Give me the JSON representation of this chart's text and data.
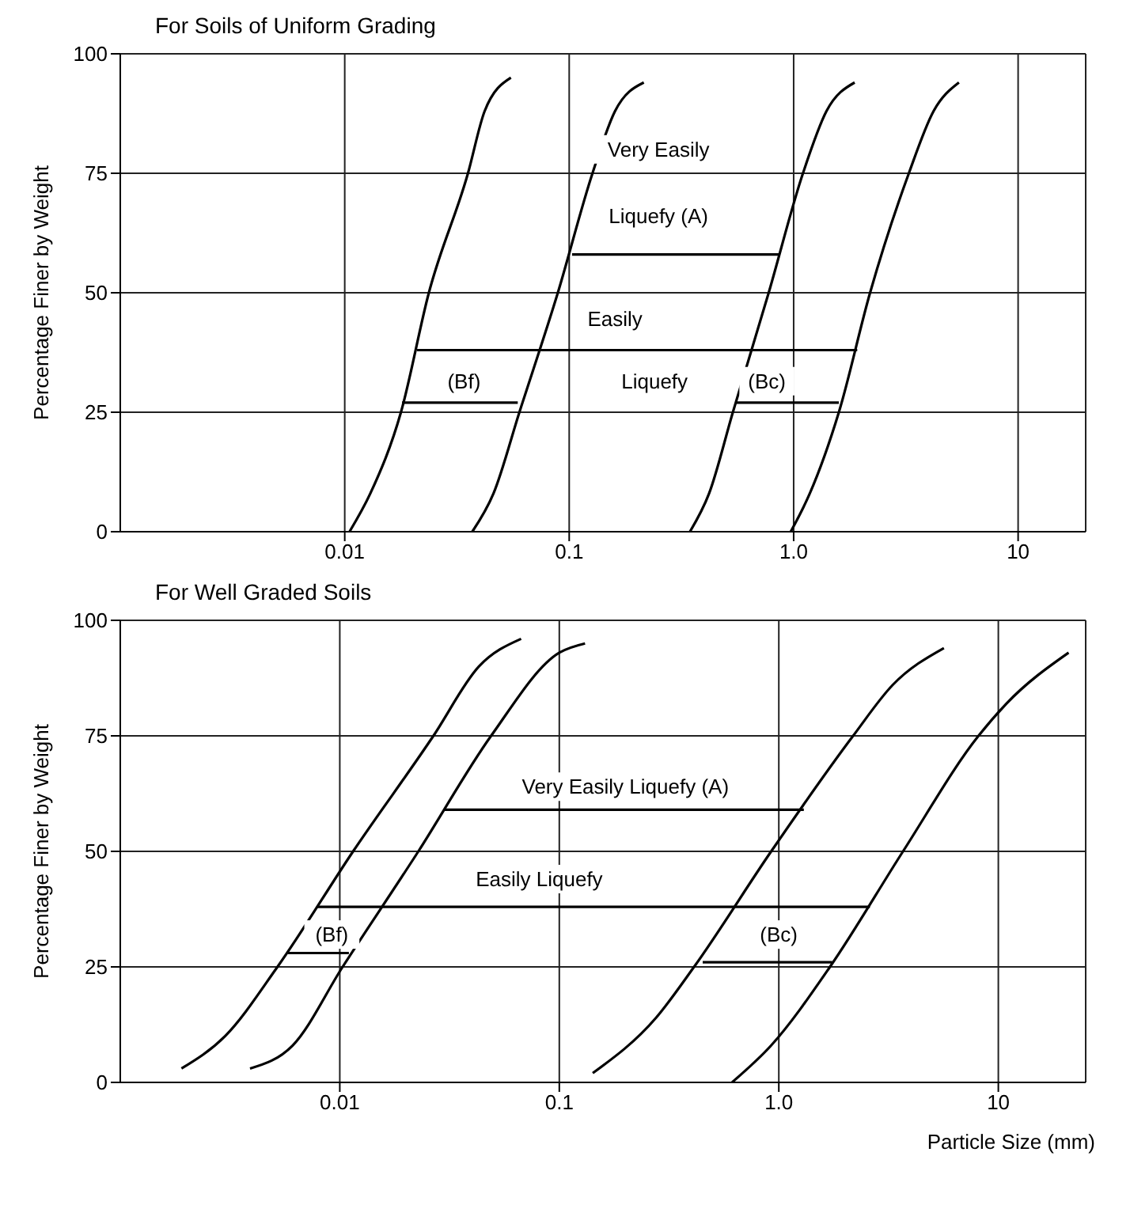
{
  "chart_data": [
    {
      "type": "line",
      "title": "For Soils of Uniform Grading",
      "ylabel": "Percentage Finer by Weight",
      "log": "x",
      "grid": true,
      "marker": "none",
      "line_style": "solid",
      "xlim": [
        0.001,
        20
      ],
      "ylim": [
        0,
        100
      ],
      "xticks": [
        0.01,
        0.1,
        {
          "value": 1,
          "label": "1.0"
        },
        10
      ],
      "yticks": [
        0,
        25,
        50,
        75,
        100
      ],
      "series": [
        {
          "color": "#000000",
          "x": [
            0.0105,
            0.013,
            0.0178,
            0.0237,
            0.0354,
            0.042,
            0.055
          ],
          "values": [
            0,
            8,
            25,
            50,
            75,
            88,
            95
          ]
        },
        {
          "color": "#000000",
          "x": [
            0.037,
            0.046,
            0.06,
            0.089,
            0.127,
            0.16,
            0.215
          ],
          "values": [
            0,
            8,
            25,
            50,
            75,
            88,
            94
          ]
        },
        {
          "color": "#000000",
          "x": [
            0.345,
            0.42,
            0.536,
            0.774,
            1.1,
            1.4,
            1.87
          ],
          "values": [
            0,
            8,
            25,
            50,
            75,
            88,
            94
          ]
        },
        {
          "color": "#000000",
          "x": [
            0.97,
            1.18,
            1.59,
            2.19,
            3.26,
            4.2,
            5.45
          ],
          "values": [
            0,
            8,
            25,
            50,
            75,
            88,
            94
          ]
        },
        {
          "color": "#000000",
          "x": [
            0.018,
            0.059
          ],
          "values": [
            27,
            27
          ]
        },
        {
          "color": "#000000",
          "x": [
            0.021,
            1.92
          ],
          "values": [
            38,
            38
          ]
        },
        {
          "color": "#000000",
          "x": [
            0.103,
            0.87
          ],
          "values": [
            58,
            58
          ]
        },
        {
          "color": "#000000",
          "x": [
            0.55,
            1.59
          ],
          "values": [
            27,
            27
          ]
        }
      ],
      "annotations": [
        "Very Easily",
        "Liquefy (A)",
        "Easily",
        "Liquefy",
        "(Bf)",
        "(Bc)"
      ]
    },
    {
      "type": "line",
      "title": "For Well Graded Soils",
      "ylabel": "Percentage Finer by Weight",
      "xlabel": "Particle Size (mm)",
      "log": "x",
      "grid": true,
      "marker": "none",
      "line_style": "solid",
      "xlim": [
        0.001,
        25
      ],
      "ylim": [
        0,
        100
      ],
      "xticks": [
        0.01,
        0.1,
        {
          "value": 1,
          "label": "1.0"
        },
        10
      ],
      "yticks": [
        0,
        25,
        50,
        75,
        100
      ],
      "series": [
        {
          "color": "#000000",
          "x": [
            0.0019,
            0.003,
            0.0052,
            0.0115,
            0.0267,
            0.043,
            0.067
          ],
          "values": [
            3,
            10,
            25,
            50,
            75,
            90,
            96
          ]
        },
        {
          "color": "#000000",
          "x": [
            0.0039,
            0.0061,
            0.0103,
            0.0228,
            0.0489,
            0.1,
            0.131
          ],
          "values": [
            3,
            8,
            25,
            50,
            75,
            93,
            95
          ]
        },
        {
          "color": "#000000",
          "x": [
            0.142,
            0.276,
            0.411,
            0.923,
            2.18,
            3.3,
            5.65
          ],
          "values": [
            2,
            14,
            25,
            50,
            75,
            86,
            94
          ]
        },
        {
          "color": "#000000",
          "x": [
            0.612,
            0.923,
            1.71,
            3.68,
            8.12,
            10.9,
            20.9
          ],
          "values": [
            0,
            8,
            25,
            50,
            75,
            82,
            93
          ]
        },
        {
          "color": "#000000",
          "x": [
            0.0058,
            0.011
          ],
          "values": [
            28,
            28
          ]
        },
        {
          "color": "#000000",
          "x": [
            0.0079,
            2.6
          ],
          "values": [
            38,
            38
          ]
        },
        {
          "color": "#000000",
          "x": [
            0.03,
            1.3
          ],
          "values": [
            59,
            59
          ]
        },
        {
          "color": "#000000",
          "x": [
            0.45,
            1.75
          ],
          "values": [
            26,
            26
          ]
        }
      ],
      "annotations": [
        "Very Easily Liquefy (A)",
        "Easily Liquefy",
        "(Bf)",
        "(Bc)"
      ]
    }
  ]
}
